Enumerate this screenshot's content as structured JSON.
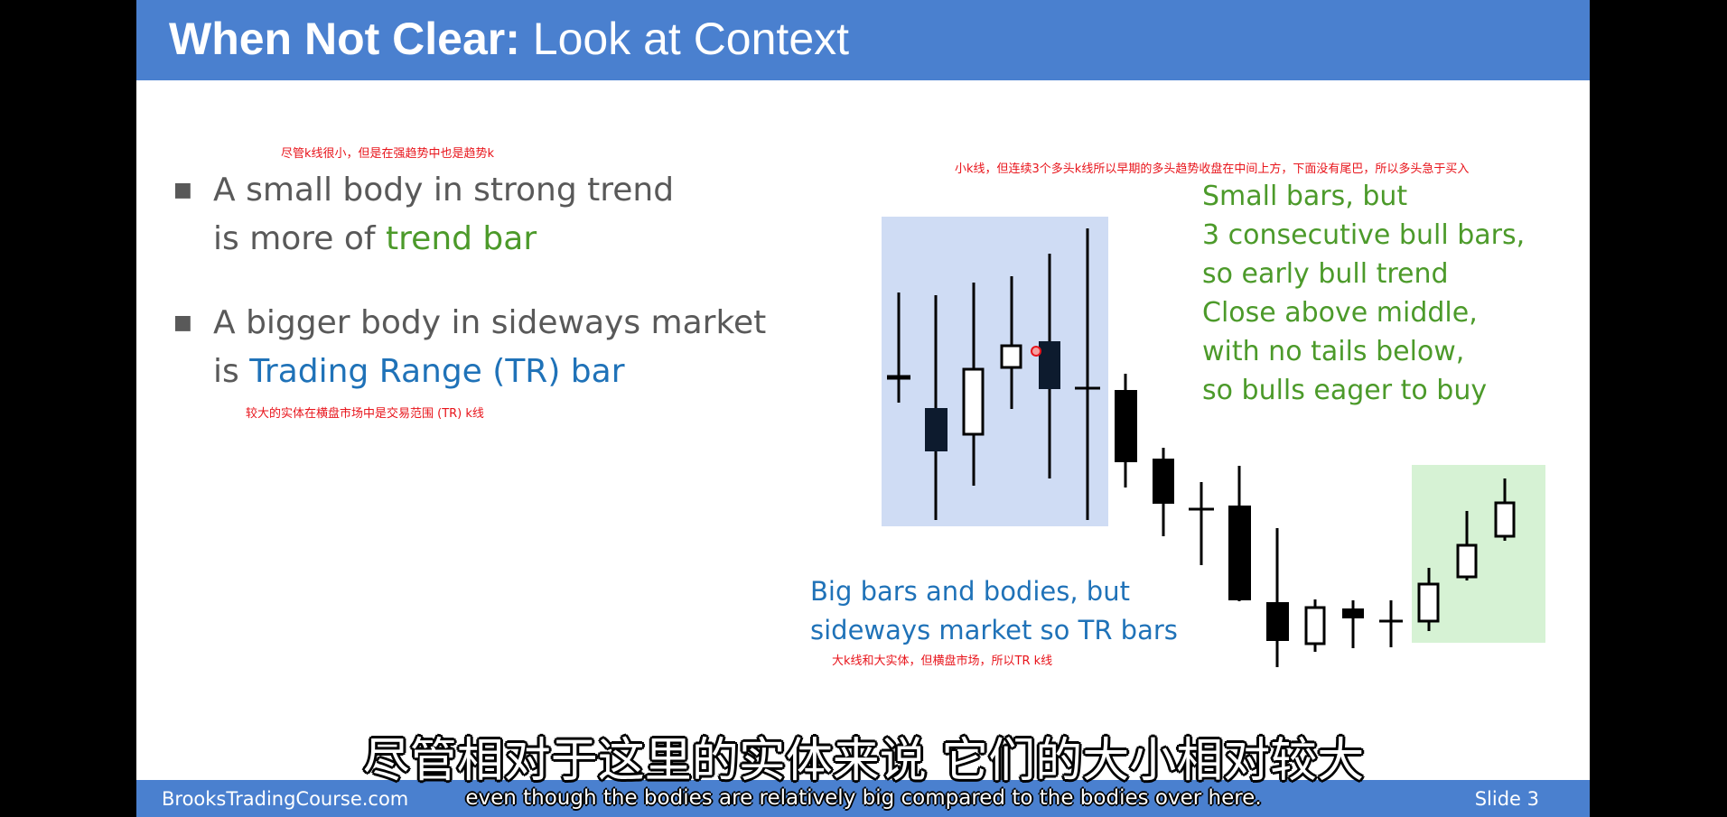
{
  "slide": {
    "title_bold": "When Not Clear:",
    "title_rest": " Look at Context",
    "footer_site": "BrooksTradingCourse.com",
    "footer_slide": "Slide  3"
  },
  "bullets": [
    {
      "line1": "A small body in strong trend",
      "line2_prefix": "is more of ",
      "line2_highlight": "trend bar"
    },
    {
      "line1": "A bigger body in sideways market",
      "line2_prefix": "is ",
      "line2_highlight": "Trading Range (TR) bar"
    }
  ],
  "annotations": {
    "zh_bullet1": "尽管k线很小，但是在强趋势中也是趋势k",
    "zh_bullet2": "较大的实体在横盘市场中是交易范围 (TR) k线",
    "zh_right": "小k线，但连续3个多头k线所以早期的多头趋势收盘在中间上方，下面没有尾巴，所以多头急于买入",
    "zh_bottom": "大k线和大实体，但横盘市场，所以TR k线"
  },
  "right_note": [
    "Small bars, but",
    "3 consecutive bull bars,",
    "so early bull trend",
    "Close above middle,",
    "with no tails below,",
    "so bulls eager to buy"
  ],
  "bottom_note": [
    "Big bars and bodies, but",
    "sideways market so TR bars"
  ],
  "subtitles": {
    "zh": "尽管相对于这里的实体来说 它们的大小相对较大",
    "en": "even though the bodies are relatively big compared to the bodies over here."
  },
  "colors": {
    "header": "#4a80cf",
    "tr_region": "#cfdcf4",
    "bull_region": "#d6f2d4",
    "annotation_red": "#e8141b",
    "green_text": "#4c9a2a",
    "blue_text": "#1f72b8"
  }
}
